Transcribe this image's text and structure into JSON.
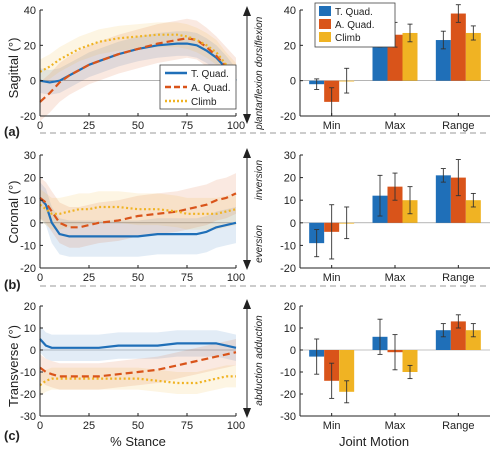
{
  "colors": {
    "tquad": "#1f6fb8",
    "aquad": "#d9541a",
    "climb": "#f0b323"
  },
  "figure": {
    "xlabel_left": "% Stance",
    "xlabel_right": "Joint Motion",
    "bar_categories": [
      "Min",
      "Max",
      "Range"
    ]
  },
  "chart_data": [
    {
      "panel": "(a)",
      "type": "line",
      "ylabel": "Sagittal (°)",
      "xlim": [
        0,
        100
      ],
      "ylim": [
        -20,
        40
      ],
      "yticks": [
        -20,
        0,
        20,
        40
      ],
      "xticks": [
        0,
        25,
        50,
        75,
        100
      ],
      "arrow_up": "dorsiflexion",
      "arrow_down": "plantarflexion",
      "legend": [
        "T. Quad.",
        "A. Quad.",
        "Climb"
      ],
      "series": [
        {
          "name": "T. Quad.",
          "x": [
            0,
            5,
            10,
            15,
            20,
            25,
            30,
            40,
            50,
            60,
            70,
            75,
            80,
            85,
            90,
            95,
            100
          ],
          "y": [
            0,
            -1,
            0,
            3,
            6,
            9,
            11,
            15,
            18,
            20,
            21,
            21,
            20,
            17,
            13,
            7,
            0
          ]
        },
        {
          "name": "A. Quad.",
          "x": [
            0,
            5,
            10,
            15,
            20,
            25,
            30,
            40,
            50,
            60,
            70,
            75,
            80,
            85,
            90,
            95,
            100
          ],
          "y": [
            -12,
            -7,
            -1,
            3,
            6,
            9,
            11,
            15,
            18,
            21,
            23,
            24,
            23,
            19,
            14,
            8,
            2
          ]
        },
        {
          "name": "Climb",
          "x": [
            0,
            5,
            10,
            15,
            20,
            25,
            30,
            40,
            50,
            60,
            70,
            75,
            80,
            85,
            90,
            95,
            100
          ],
          "y": [
            5,
            8,
            12,
            15,
            18,
            20,
            22,
            24,
            25,
            26,
            26,
            25,
            23,
            20,
            16,
            9,
            3
          ]
        }
      ]
    },
    {
      "panel": "(a)",
      "type": "bar",
      "ylim": [
        -20,
        40
      ],
      "yticks": [
        -20,
        0,
        20,
        40
      ],
      "categories": [
        "Min",
        "Max",
        "Range"
      ],
      "legend": [
        "T. Quad.",
        "A. Quad.",
        "Climb"
      ],
      "series": [
        {
          "name": "T. Quad.",
          "values": [
            -2,
            21,
            23
          ],
          "err": [
            3,
            2,
            5
          ]
        },
        {
          "name": "A. Quad.",
          "values": [
            -12,
            26,
            38
          ],
          "err": [
            8,
            7,
            5
          ]
        },
        {
          "name": "Climb",
          "values": [
            0,
            27,
            27
          ],
          "err": [
            7,
            5,
            4
          ]
        }
      ]
    },
    {
      "panel": "(b)",
      "type": "line",
      "ylabel": "Coronal (°)",
      "xlim": [
        0,
        100
      ],
      "ylim": [
        -20,
        30
      ],
      "yticks": [
        -20,
        -10,
        0,
        10,
        20,
        30
      ],
      "xticks": [
        0,
        25,
        50,
        75,
        100
      ],
      "arrow_up": "inversion",
      "arrow_down": "eversion",
      "series": [
        {
          "name": "T. Quad.",
          "x": [
            0,
            3,
            6,
            10,
            15,
            20,
            25,
            30,
            40,
            50,
            60,
            70,
            75,
            80,
            85,
            90,
            95,
            100
          ],
          "y": [
            11,
            8,
            0,
            -5,
            -6,
            -6,
            -6,
            -6,
            -6,
            -6,
            -5,
            -5,
            -5,
            -5,
            -4,
            -2,
            -1,
            0
          ]
        },
        {
          "name": "A. Quad.",
          "x": [
            0,
            3,
            6,
            10,
            15,
            20,
            25,
            30,
            40,
            50,
            60,
            70,
            75,
            80,
            85,
            90,
            95,
            100
          ],
          "y": [
            11,
            9,
            5,
            0,
            -2,
            -2,
            -1,
            0,
            1,
            3,
            4,
            5,
            6,
            7,
            8,
            10,
            11,
            13
          ]
        },
        {
          "name": "Climb",
          "x": [
            0,
            3,
            6,
            10,
            15,
            20,
            25,
            30,
            40,
            50,
            60,
            70,
            75,
            80,
            85,
            90,
            95,
            100
          ],
          "y": [
            8,
            6,
            4,
            4,
            5,
            6,
            6,
            7,
            7,
            6,
            6,
            5,
            4,
            4,
            4,
            4,
            5,
            6
          ]
        }
      ]
    },
    {
      "panel": "(b)",
      "type": "bar",
      "ylim": [
        -20,
        30
      ],
      "yticks": [
        -20,
        -10,
        0,
        10,
        20,
        30
      ],
      "categories": [
        "Min",
        "Max",
        "Range"
      ],
      "series": [
        {
          "name": "T. Quad.",
          "values": [
            -9,
            12,
            21
          ],
          "err": [
            6,
            9,
            3
          ]
        },
        {
          "name": "A. Quad.",
          "values": [
            -4,
            16,
            20
          ],
          "err": [
            12,
            6,
            8
          ]
        },
        {
          "name": "Climb",
          "values": [
            0,
            10,
            10
          ],
          "err": [
            7,
            6,
            3
          ]
        }
      ]
    },
    {
      "panel": "(c)",
      "type": "line",
      "ylabel": "Transverse (°)",
      "xlim": [
        0,
        100
      ],
      "ylim": [
        -30,
        20
      ],
      "yticks": [
        -30,
        -20,
        -10,
        0,
        10,
        20
      ],
      "xticks": [
        0,
        25,
        50,
        75,
        100
      ],
      "arrow_up": "adduction",
      "arrow_down": "abduction",
      "series": [
        {
          "name": "T. Quad.",
          "x": [
            0,
            3,
            6,
            10,
            15,
            20,
            25,
            30,
            40,
            50,
            60,
            70,
            75,
            80,
            85,
            90,
            95,
            100
          ],
          "y": [
            5,
            2,
            1,
            1,
            1,
            1,
            1,
            1,
            2,
            2,
            2,
            3,
            3,
            3,
            3,
            3,
            2,
            1
          ]
        },
        {
          "name": "A. Quad.",
          "x": [
            0,
            3,
            6,
            10,
            15,
            20,
            25,
            30,
            40,
            50,
            60,
            70,
            75,
            80,
            85,
            90,
            95,
            100
          ],
          "y": [
            -8,
            -10,
            -11,
            -12,
            -12,
            -12,
            -12,
            -12,
            -11,
            -10,
            -9,
            -7,
            -6,
            -5,
            -4,
            -3,
            -2,
            -1
          ]
        },
        {
          "name": "Climb",
          "x": [
            0,
            3,
            6,
            10,
            15,
            20,
            25,
            30,
            40,
            50,
            60,
            70,
            75,
            80,
            85,
            90,
            95,
            100
          ],
          "y": [
            -16,
            -14,
            -13,
            -13,
            -13,
            -13,
            -13,
            -13,
            -13,
            -13,
            -14,
            -15,
            -15,
            -15,
            -14,
            -13,
            -12,
            -12
          ]
        }
      ]
    },
    {
      "panel": "(c)",
      "type": "bar",
      "ylim": [
        -30,
        20
      ],
      "yticks": [
        -30,
        -20,
        -10,
        0,
        10,
        20
      ],
      "categories": [
        "Min",
        "Max",
        "Range"
      ],
      "series": [
        {
          "name": "T. Quad.",
          "values": [
            -3,
            6,
            9
          ],
          "err": [
            8,
            8,
            3
          ]
        },
        {
          "name": "A. Quad.",
          "values": [
            -14,
            -1,
            13
          ],
          "err": [
            8,
            8,
            3
          ]
        },
        {
          "name": "Climb",
          "values": [
            -19,
            -10,
            9
          ],
          "err": [
            5,
            3,
            3
          ]
        }
      ]
    }
  ]
}
